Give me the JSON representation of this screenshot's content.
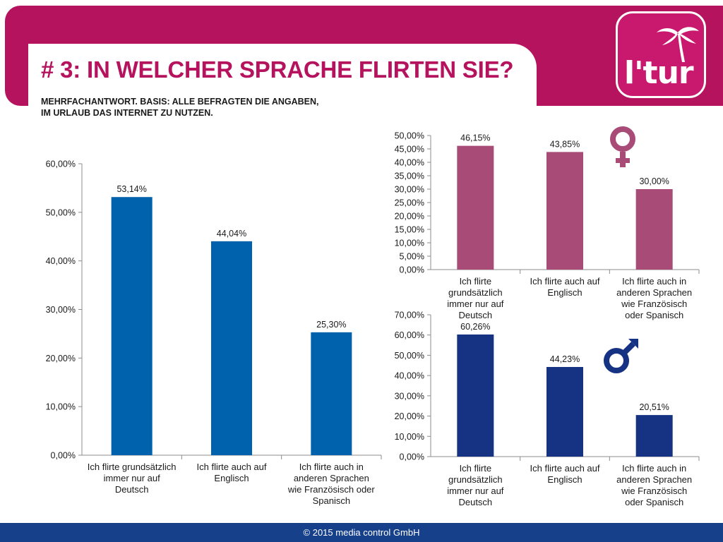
{
  "header": {
    "title": "# 3: IN WELCHER SPRACHE FLIRTEN SIE?",
    "subtitle_lines": [
      "MEHRFACHANTWORT. BASIS: ALLE BEFRAGTEN DIE ANGABEN,",
      "IM URLAUB DAS INTERNET ZU NUTZEN."
    ],
    "logo_text": "l'tur"
  },
  "colors": {
    "brand": "#b5135e",
    "total_bar": "#0061ac",
    "female_bar": "#a84b77",
    "male_bar": "#163283",
    "footer": "#17408b"
  },
  "chart_data": [
    {
      "id": "total",
      "type": "bar",
      "categories": [
        [
          "Ich flirte grundsätzlich",
          "immer nur auf",
          "Deutsch"
        ],
        [
          "Ich flirte auch auf",
          "Englisch"
        ],
        [
          "Ich flirte auch in",
          "anderen Sprachen",
          "wie Französisch oder",
          "Spanisch"
        ]
      ],
      "values": [
        53.14,
        44.04,
        25.3
      ],
      "value_labels": [
        "53,14%",
        "44,04%",
        "25,30%"
      ],
      "ylim": [
        0,
        60
      ],
      "yticks": [
        "0,00%",
        "10,00%",
        "20,00%",
        "30,00%",
        "40,00%",
        "50,00%",
        "60,00%"
      ],
      "color": "#0061ac"
    },
    {
      "id": "female",
      "type": "bar",
      "categories": [
        [
          "Ich flirte",
          "grundsätzlich",
          "immer nur auf",
          "Deutsch"
        ],
        [
          "Ich flirte auch auf",
          "Englisch"
        ],
        [
          "Ich flirte auch in",
          "anderen Sprachen",
          "wie Französisch",
          "oder Spanisch"
        ]
      ],
      "values": [
        46.15,
        43.85,
        30.0
      ],
      "value_labels": [
        "46,15%",
        "43,85%",
        "30,00%"
      ],
      "ylim": [
        0,
        50
      ],
      "yticks": [
        "0,00%",
        "5,00%",
        "10,00%",
        "15,00%",
        "20,00%",
        "25,00%",
        "30,00%",
        "35,00%",
        "40,00%",
        "45,00%",
        "50,00%"
      ],
      "color": "#a84b77",
      "symbol": "female-symbol"
    },
    {
      "id": "male",
      "type": "bar",
      "categories": [
        [
          "Ich flirte",
          "grundsätzlich",
          "immer nur auf",
          "Deutsch"
        ],
        [
          "Ich flirte auch auf",
          "Englisch"
        ],
        [
          "Ich flirte auch in",
          "anderen Sprachen",
          "wie Französisch",
          "oder Spanisch"
        ]
      ],
      "values": [
        60.26,
        44.23,
        20.51
      ],
      "value_labels": [
        "60,26%",
        "44,23%",
        "20,51%"
      ],
      "ylim": [
        0,
        70
      ],
      "yticks": [
        "0,00%",
        "10,00%",
        "20,00%",
        "30,00%",
        "40,00%",
        "50,00%",
        "60,00%",
        "70,00%"
      ],
      "color": "#163283",
      "symbol": "male-symbol"
    }
  ],
  "footer": {
    "text": "© 2015 media control GmbH"
  }
}
